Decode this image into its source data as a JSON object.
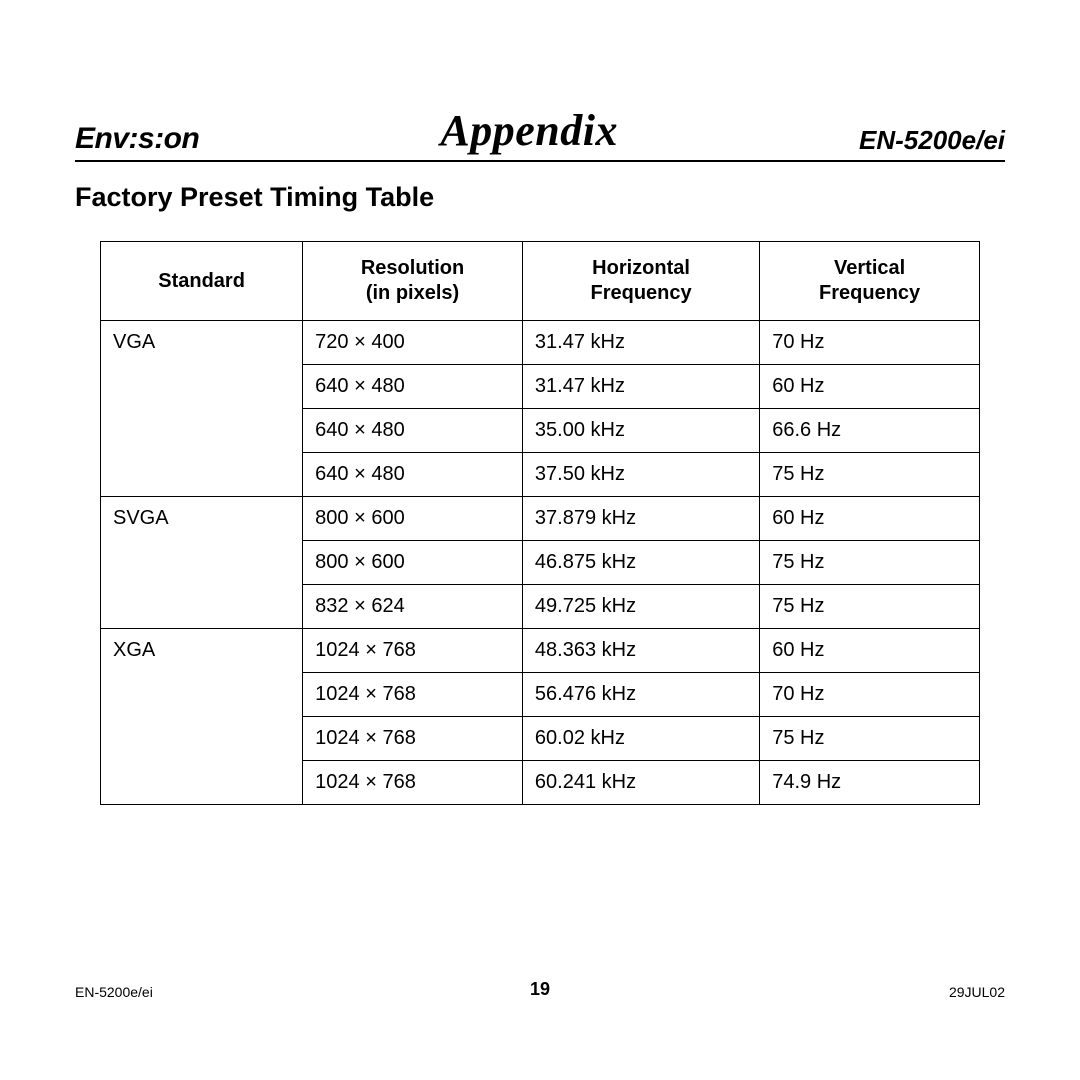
{
  "header": {
    "brand": "Env:s:on",
    "title": "Appendix",
    "model": "EN-5200e/ei"
  },
  "section_title": "Factory Preset Timing Table",
  "table": {
    "columns": [
      {
        "line1": "Standard",
        "line2": ""
      },
      {
        "line1": "Resolution",
        "line2": "(in pixels)"
      },
      {
        "line1": "Horizontal",
        "line2": "Frequency"
      },
      {
        "line1": "Vertical",
        "line2": "Frequency"
      }
    ],
    "col_widths": [
      "23%",
      "25%",
      "27%",
      "25%"
    ],
    "groups": [
      {
        "standard": "VGA",
        "rows": [
          {
            "resolution": "720 × 400",
            "hfreq": "31.47 kHz",
            "vfreq": "70 Hz"
          },
          {
            "resolution": "640 × 480",
            "hfreq": "31.47 kHz",
            "vfreq": "60 Hz"
          },
          {
            "resolution": "640 × 480",
            "hfreq": "35.00 kHz",
            "vfreq": "66.6 Hz"
          },
          {
            "resolution": "640 × 480",
            "hfreq": "37.50 kHz",
            "vfreq": "75 Hz"
          }
        ]
      },
      {
        "standard": "SVGA",
        "rows": [
          {
            "resolution": "800 × 600",
            "hfreq": "37.879 kHz",
            "vfreq": "60 Hz"
          },
          {
            "resolution": "800 × 600",
            "hfreq": "46.875 kHz",
            "vfreq": "75 Hz"
          },
          {
            "resolution": "832 × 624",
            "hfreq": "49.725 kHz",
            "vfreq": "75 Hz"
          }
        ]
      },
      {
        "standard": "XGA",
        "rows": [
          {
            "resolution": "1024 × 768",
            "hfreq": "48.363 kHz",
            "vfreq": "60 Hz"
          },
          {
            "resolution": "1024 × 768",
            "hfreq": "56.476 kHz",
            "vfreq": "70 Hz"
          },
          {
            "resolution": "1024 × 768",
            "hfreq": "60.02 kHz",
            "vfreq": "75 Hz"
          },
          {
            "resolution": "1024 × 768",
            "hfreq": "60.241 kHz",
            "vfreq": "74.9 Hz"
          }
        ]
      }
    ]
  },
  "footer": {
    "left": "EN-5200e/ei",
    "page_number": "19",
    "right": "29JUL02"
  }
}
